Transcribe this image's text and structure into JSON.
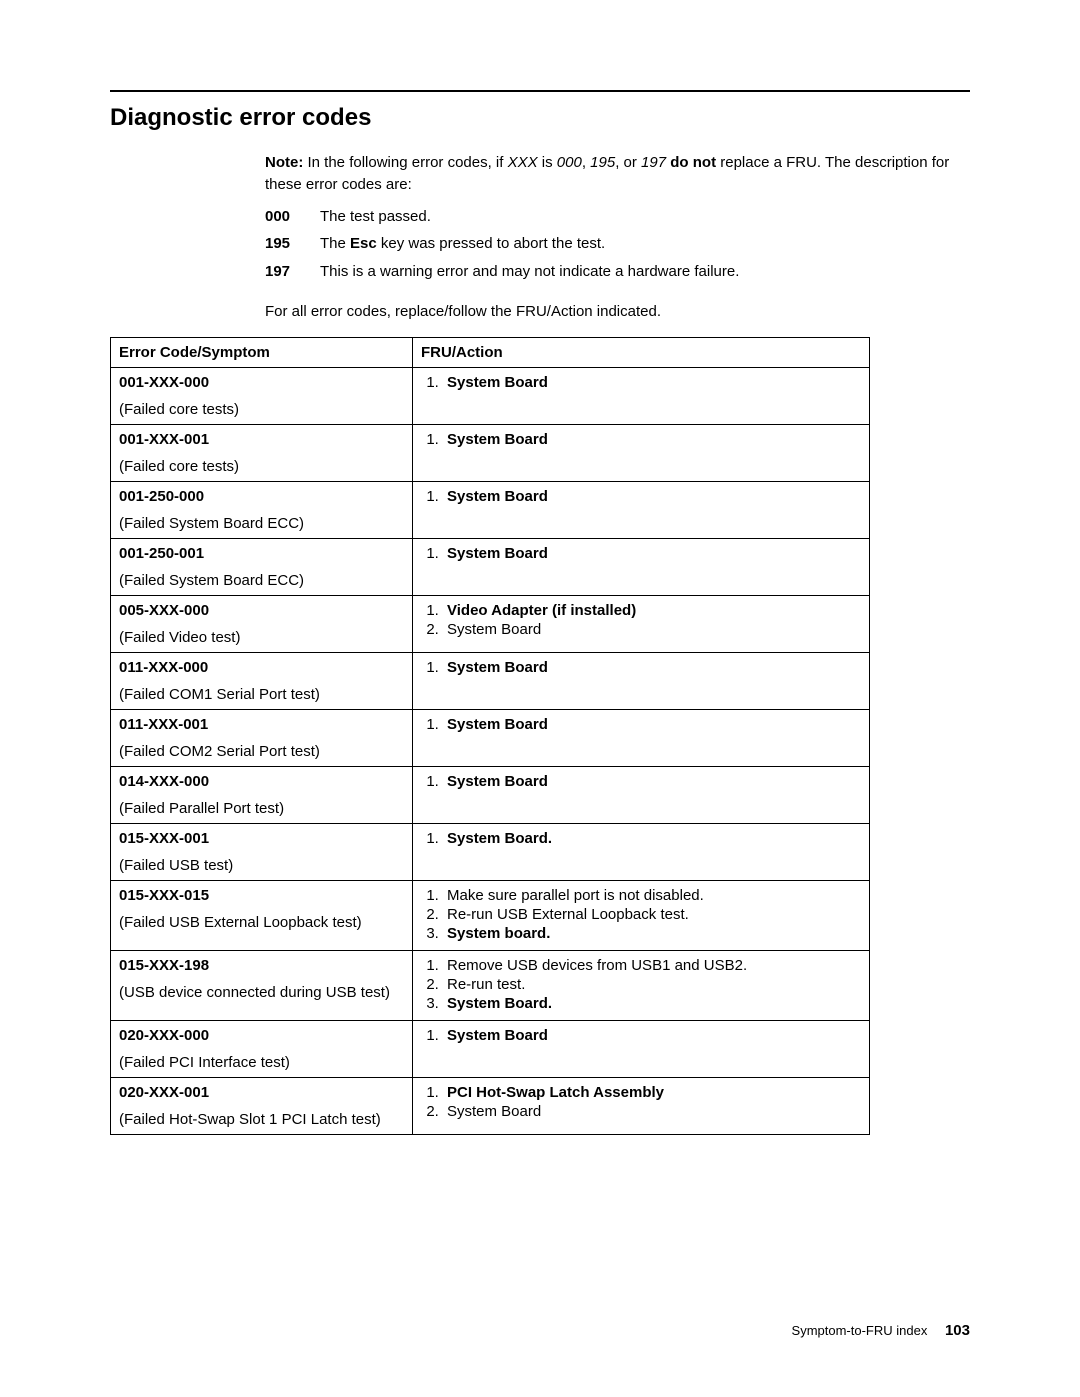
{
  "title": "Diagnostic error codes",
  "note": {
    "label": "Note:",
    "line1_prefix": "In the following error codes, if ",
    "line1_xxx": "XXX",
    "line1_mid": " is ",
    "line1_c1": "000",
    "line1_sep1": ", ",
    "line1_c2": "195",
    "line1_sep2": ", or ",
    "line1_c3": "197",
    "line1_bold": " do not",
    "line1_suffix": " replace a FRU. The description for these error codes are:"
  },
  "defs": [
    {
      "code": "000",
      "text_pre": "The test passed.",
      "bold_mid": "",
      "text_post": ""
    },
    {
      "code": "195",
      "text_pre": "The ",
      "bold_mid": "Esc",
      "text_post": " key was pressed to abort the test."
    },
    {
      "code": "197",
      "text_pre": "This is a warning error and may not indicate a hardware failure.",
      "bold_mid": "",
      "text_post": ""
    }
  ],
  "after_defs": "For all error codes, replace/follow the FRU/Action indicated.",
  "table": {
    "head_left": "Error Code/Symptom",
    "head_right": "FRU/Action",
    "rows": [
      {
        "code": "001-XXX-000",
        "desc": "(Failed core tests)",
        "actions": [
          {
            "text": "System Board",
            "bold": true
          }
        ]
      },
      {
        "code": "001-XXX-001",
        "desc": "(Failed core tests)",
        "actions": [
          {
            "text": "System Board",
            "bold": true
          }
        ]
      },
      {
        "code": "001-250-000",
        "desc": "(Failed System Board ECC)",
        "actions": [
          {
            "text": "System Board",
            "bold": true
          }
        ]
      },
      {
        "code": "001-250-001",
        "desc": "(Failed System Board ECC)",
        "actions": [
          {
            "text": "System Board",
            "bold": true
          }
        ]
      },
      {
        "code": "005-XXX-000",
        "desc": "(Failed Video test)",
        "actions": [
          {
            "text": "Video Adapter (if installed)",
            "bold": true
          },
          {
            "text": "System Board",
            "bold": false
          }
        ]
      },
      {
        "code": "011-XXX-000",
        "desc": "(Failed COM1 Serial Port test)",
        "actions": [
          {
            "text": "System Board",
            "bold": true
          }
        ]
      },
      {
        "code": "011-XXX-001",
        "desc": "(Failed COM2 Serial Port test)",
        "actions": [
          {
            "text": "System Board",
            "bold": true
          }
        ]
      },
      {
        "code": "014-XXX-000",
        "desc": "(Failed Parallel Port test)",
        "actions": [
          {
            "text": "System Board",
            "bold": true
          }
        ]
      },
      {
        "code": "015-XXX-001",
        "desc": "(Failed USB test)",
        "actions": [
          {
            "text": "System Board.",
            "bold": true
          }
        ]
      },
      {
        "code": "015-XXX-015",
        "desc": "(Failed USB External Loopback test)",
        "actions": [
          {
            "text": "Make sure parallel port is not disabled.",
            "bold": false
          },
          {
            "text": "Re-run USB External Loopback test.",
            "bold": false
          },
          {
            "text": "System board.",
            "bold": true
          }
        ]
      },
      {
        "code": "015-XXX-198",
        "desc": "(USB device connected during USB test)",
        "actions": [
          {
            "text": "Remove USB devices from USB1 and USB2.",
            "bold": false
          },
          {
            "text": "Re-run test.",
            "bold": false
          },
          {
            "text": "System Board.",
            "bold": true
          }
        ]
      },
      {
        "code": "020-XXX-000",
        "desc": "(Failed PCI Interface test)",
        "actions": [
          {
            "text": "System Board",
            "bold": true
          }
        ]
      },
      {
        "code": "020-XXX-001",
        "desc": "(Failed Hot-Swap Slot 1 PCI Latch test)",
        "actions": [
          {
            "text": "PCI Hot-Swap Latch Assembly",
            "bold": true
          },
          {
            "text": "System Board",
            "bold": false
          }
        ]
      }
    ]
  },
  "footer": {
    "text": "Symptom-to-FRU index",
    "page": "103"
  }
}
